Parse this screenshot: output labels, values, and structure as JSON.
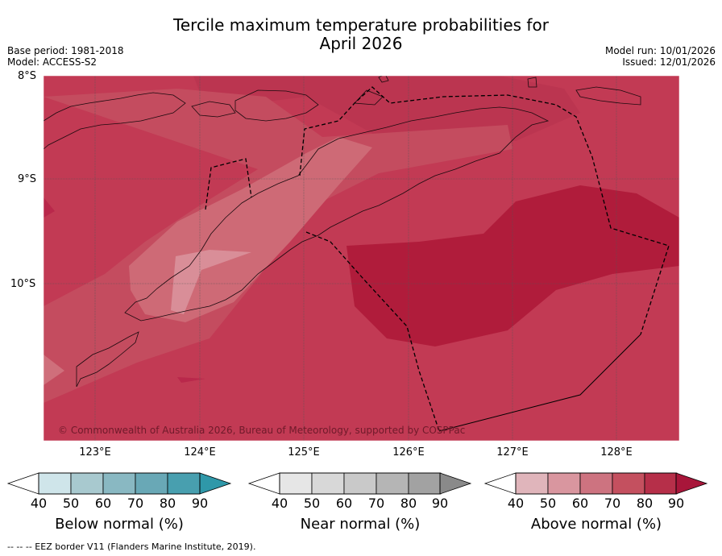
{
  "title_line1": "Tercile maximum temperature probabilities for",
  "title_line2": "April 2026",
  "base_period": "Base period: 1981-2018",
  "model": "Model: ACCESS-S2",
  "model_run": "Model run: 10/01/2026",
  "issued": "Issued: 12/01/2026",
  "lat_labels": [
    "8°S",
    "9°S",
    "10°S"
  ],
  "lon_labels": [
    "123°E",
    "124°E",
    "125°E",
    "126°E",
    "127°E",
    "128°E"
  ],
  "copyright": "© Commonwealth of Australia 2026, Bureau of Meteorology, supported by COSPPac",
  "colorbars": [
    {
      "title": "Below normal (%)",
      "ticks": [
        "40",
        "50",
        "60",
        "70",
        "80",
        "90"
      ],
      "colors": [
        "#cfe5ea",
        "#a8c9cf",
        "#89b8c2",
        "#69a8b6",
        "#489faf",
        "#2f98a9"
      ]
    },
    {
      "title": "Near normal (%)",
      "ticks": [
        "40",
        "50",
        "60",
        "70",
        "80",
        "90"
      ],
      "colors": [
        "#e6e6e6",
        "#d8d8d8",
        "#c9c9c9",
        "#b5b5b5",
        "#a2a2a2",
        "#8a8a8a"
      ]
    },
    {
      "title": "Above normal (%)",
      "ticks": [
        "40",
        "50",
        "60",
        "70",
        "80",
        "90"
      ],
      "colors": [
        "#e0b5bb",
        "#d9969f",
        "#cd7380",
        "#c4505f",
        "#b62f49",
        "#a8163a"
      ]
    }
  ],
  "footer": "--  --  -- EEZ border V11 (Flanders Marine Institute, 2019)."
}
